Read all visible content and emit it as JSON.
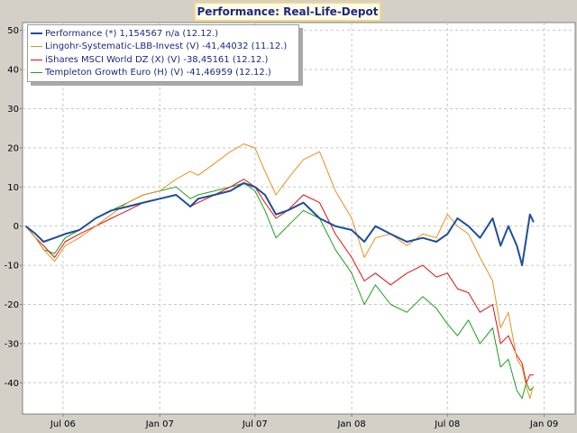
{
  "chart_data": {
    "type": "line",
    "title": "Performance: Real-Life-Depot",
    "xlabel": "",
    "ylabel": "",
    "ylim": [
      -48,
      52
    ],
    "xlim": [
      "2006-04-15",
      "2009-03-01"
    ],
    "y_ticks": [
      50,
      40,
      30,
      20,
      10,
      0,
      -10,
      -20,
      -30,
      -40
    ],
    "x_ticks": [
      {
        "date": "2006-07-01",
        "label": "Jul 06"
      },
      {
        "date": "2007-01-01",
        "label": "Jan 07"
      },
      {
        "date": "2007-07-01",
        "label": "Jul 07"
      },
      {
        "date": "2008-01-01",
        "label": "Jan 08"
      },
      {
        "date": "2008-07-01",
        "label": "Jul 08"
      },
      {
        "date": "2009-01-01",
        "label": "Jan 09"
      }
    ],
    "grid": true,
    "legend_position": "top-left",
    "series": [
      {
        "name": "Performance (*) 1,154567 n/a (12.12.)",
        "color": "#1f4e9a",
        "x": [
          "2006-04-21",
          "2006-05-10",
          "2006-05-25",
          "2006-06-15",
          "2006-07-05",
          "2006-08-01",
          "2006-09-01",
          "2006-10-01",
          "2006-11-01",
          "2006-12-01",
          "2007-01-01",
          "2007-02-01",
          "2007-02-28",
          "2007-03-15",
          "2007-04-15",
          "2007-05-15",
          "2007-06-10",
          "2007-07-01",
          "2007-07-20",
          "2007-08-10",
          "2007-09-01",
          "2007-10-01",
          "2007-11-01",
          "2007-12-01",
          "2008-01-01",
          "2008-01-25",
          "2008-02-15",
          "2008-03-15",
          "2008-04-15",
          "2008-05-15",
          "2008-06-10",
          "2008-07-01",
          "2008-07-20",
          "2008-08-10",
          "2008-09-01",
          "2008-09-25",
          "2008-10-10",
          "2008-10-25",
          "2008-11-10",
          "2008-11-20",
          "2008-11-28",
          "2008-12-05",
          "2008-12-12"
        ],
        "values": [
          0,
          -2,
          -4,
          -3,
          -2,
          -1,
          2,
          4,
          5,
          6,
          7,
          8,
          5,
          7,
          8,
          9,
          11,
          10,
          8,
          3,
          4,
          6,
          2,
          0,
          -1,
          -4,
          0,
          -2,
          -4,
          -3,
          -4,
          -2,
          2,
          0,
          -3,
          2,
          -5,
          0,
          -5,
          -10,
          -3,
          3,
          1
        ]
      },
      {
        "name": "Lingohr-Systematic-LBB-Invest (V) -41,44032 (11.12.)",
        "color": "#e8901e",
        "x": [
          "2006-04-21",
          "2006-05-10",
          "2006-05-25",
          "2006-06-15",
          "2006-07-05",
          "2006-08-01",
          "2006-09-01",
          "2006-10-01",
          "2006-11-01",
          "2006-12-01",
          "2007-01-01",
          "2007-02-01",
          "2007-02-28",
          "2007-03-15",
          "2007-04-15",
          "2007-05-15",
          "2007-06-10",
          "2007-07-01",
          "2007-07-20",
          "2007-08-10",
          "2007-09-01",
          "2007-10-01",
          "2007-11-01",
          "2007-12-01",
          "2008-01-01",
          "2008-01-25",
          "2008-02-15",
          "2008-03-15",
          "2008-04-15",
          "2008-05-15",
          "2008-06-10",
          "2008-07-01",
          "2008-07-20",
          "2008-08-10",
          "2008-09-01",
          "2008-09-25",
          "2008-10-10",
          "2008-10-25",
          "2008-11-10",
          "2008-11-20",
          "2008-11-28",
          "2008-12-05",
          "2008-12-11"
        ],
        "values": [
          0,
          -3,
          -6,
          -9,
          -5,
          -3,
          0,
          3,
          6,
          8,
          9,
          12,
          14,
          13,
          16,
          19,
          21,
          20,
          14,
          8,
          12,
          17,
          19,
          9,
          2,
          -8,
          -3,
          -2,
          -5,
          -2,
          -3,
          3,
          0,
          -2,
          -8,
          -14,
          -26,
          -22,
          -34,
          -36,
          -41,
          -44,
          -41
        ]
      },
      {
        "name": "iShares MSCI World DZ (X) (V) -38,45161 (12.12.)",
        "color": "#e01010",
        "x": [
          "2006-04-21",
          "2006-05-10",
          "2006-05-25",
          "2006-06-15",
          "2006-07-05",
          "2006-08-01",
          "2006-09-01",
          "2006-10-01",
          "2006-11-01",
          "2006-12-01",
          "2007-01-01",
          "2007-02-01",
          "2007-02-28",
          "2007-03-15",
          "2007-04-15",
          "2007-05-15",
          "2007-06-10",
          "2007-07-01",
          "2007-07-20",
          "2007-08-10",
          "2007-09-01",
          "2007-10-01",
          "2007-11-01",
          "2007-12-01",
          "2008-01-01",
          "2008-01-25",
          "2008-02-15",
          "2008-03-15",
          "2008-04-15",
          "2008-05-15",
          "2008-06-10",
          "2008-07-01",
          "2008-07-20",
          "2008-08-10",
          "2008-09-01",
          "2008-09-25",
          "2008-10-10",
          "2008-10-25",
          "2008-11-10",
          "2008-11-20",
          "2008-11-28",
          "2008-12-05",
          "2008-12-12"
        ],
        "values": [
          0,
          -3,
          -5,
          -8,
          -4,
          -2,
          0,
          2,
          4,
          6,
          7,
          8,
          5,
          6,
          8,
          10,
          12,
          10,
          6,
          2,
          4,
          8,
          6,
          -2,
          -8,
          -14,
          -12,
          -15,
          -12,
          -10,
          -13,
          -12,
          -16,
          -17,
          -22,
          -20,
          -30,
          -28,
          -33,
          -35,
          -40,
          -38,
          -38
        ]
      },
      {
        "name": "Templeton Growth Euro (H) (V) -41,46959 (12.12.)",
        "color": "#1aa01a",
        "x": [
          "2006-04-21",
          "2006-05-10",
          "2006-05-25",
          "2006-06-15",
          "2006-07-05",
          "2006-08-01",
          "2006-09-01",
          "2006-10-01",
          "2006-11-01",
          "2006-12-01",
          "2007-01-01",
          "2007-02-01",
          "2007-02-28",
          "2007-03-15",
          "2007-04-15",
          "2007-05-15",
          "2007-06-10",
          "2007-07-01",
          "2007-07-20",
          "2007-08-10",
          "2007-09-01",
          "2007-10-01",
          "2007-11-01",
          "2007-12-01",
          "2008-01-01",
          "2008-01-25",
          "2008-02-15",
          "2008-03-15",
          "2008-04-15",
          "2008-05-15",
          "2008-06-10",
          "2008-07-01",
          "2008-07-20",
          "2008-08-10",
          "2008-09-01",
          "2008-09-25",
          "2008-10-10",
          "2008-10-25",
          "2008-11-10",
          "2008-11-20",
          "2008-11-28",
          "2008-12-05",
          "2008-12-12"
        ],
        "values": [
          0,
          -3,
          -6,
          -7,
          -3,
          -1,
          2,
          4,
          6,
          8,
          9,
          10,
          7,
          8,
          9,
          10,
          11,
          9,
          4,
          -3,
          0,
          4,
          2,
          -6,
          -12,
          -20,
          -15,
          -20,
          -22,
          -18,
          -21,
          -25,
          -28,
          -24,
          -30,
          -26,
          -36,
          -34,
          -42,
          -44,
          -40,
          -42,
          -41
        ]
      }
    ]
  }
}
